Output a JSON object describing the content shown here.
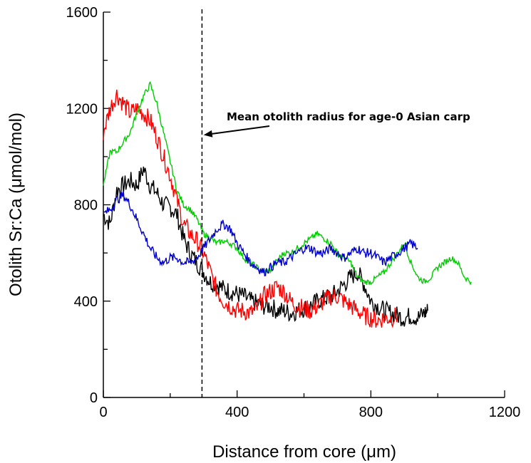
{
  "chart_data": {
    "type": "line",
    "title": "",
    "xlabel": "Distance from core (μm)",
    "ylabel": "Otolith Sr:Ca (μmol/mol)",
    "xlim": [
      0,
      1200
    ],
    "ylim": [
      0,
      1600
    ],
    "x_ticks": [
      0,
      400,
      800,
      1200
    ],
    "x_tick_labels": [
      "0",
      "400",
      "800",
      "1200"
    ],
    "y_ticks": [
      0,
      400,
      800,
      1200,
      1600
    ],
    "y_tick_labels": [
      "0",
      "400",
      "800",
      "1200",
      "1600"
    ],
    "grid": false,
    "legend": "none",
    "reference_line": {
      "x": 295,
      "style": "dashed"
    },
    "annotation": {
      "text": "Mean otolith radius for age-0 Asian carp",
      "arrow_target": {
        "x": 300,
        "y": 1090
      }
    },
    "series": [
      {
        "color": "#000000",
        "x": [
          0,
          20,
          40,
          60,
          80,
          100,
          120,
          140,
          160,
          180,
          200,
          220,
          240,
          260,
          280,
          300,
          320,
          340,
          360,
          380,
          400,
          420,
          440,
          460,
          480,
          500,
          520,
          540,
          560,
          580,
          600,
          620,
          640,
          660,
          680,
          700,
          720,
          740,
          760,
          780,
          800,
          820,
          840,
          860,
          880,
          900,
          920,
          940,
          960,
          970
        ],
        "y": [
          760,
          720,
          860,
          880,
          900,
          880,
          950,
          880,
          850,
          800,
          790,
          760,
          660,
          600,
          560,
          520,
          480,
          470,
          450,
          440,
          430,
          420,
          400,
          390,
          380,
          380,
          360,
          360,
          350,
          360,
          370,
          380,
          400,
          410,
          420,
          440,
          470,
          500,
          520,
          470,
          400,
          380,
          360,
          350,
          340,
          330,
          340,
          330,
          350,
          360
        ]
      },
      {
        "color": "#ff0000",
        "x": [
          0,
          20,
          40,
          60,
          80,
          100,
          120,
          140,
          160,
          180,
          200,
          220,
          240,
          260,
          280,
          300,
          320,
          340,
          360,
          380,
          400,
          420,
          440,
          460,
          480,
          500,
          520,
          540,
          560,
          580,
          600,
          620,
          640,
          660,
          680,
          700,
          720,
          740,
          760,
          780,
          800,
          820,
          840,
          860,
          880
        ],
        "y": [
          1100,
          1200,
          1260,
          1220,
          1180,
          1200,
          1180,
          1150,
          1080,
          1000,
          920,
          820,
          720,
          680,
          650,
          600,
          520,
          440,
          400,
          380,
          360,
          360,
          350,
          370,
          420,
          440,
          460,
          440,
          400,
          380,
          370,
          360,
          380,
          400,
          420,
          420,
          400,
          380,
          360,
          340,
          330,
          320,
          330,
          330,
          340
        ]
      },
      {
        "color": "#00cc00",
        "x": [
          0,
          20,
          40,
          60,
          80,
          100,
          120,
          140,
          160,
          180,
          200,
          220,
          240,
          260,
          280,
          300,
          320,
          340,
          360,
          380,
          400,
          420,
          440,
          460,
          480,
          500,
          520,
          540,
          560,
          580,
          600,
          620,
          640,
          660,
          680,
          700,
          720,
          740,
          760,
          780,
          800,
          820,
          840,
          860,
          880,
          900,
          920,
          940,
          960,
          980,
          1000,
          1020,
          1040,
          1060,
          1080,
          1100
        ],
        "y": [
          880,
          1020,
          1020,
          1060,
          1100,
          1180,
          1250,
          1300,
          1220,
          1100,
          980,
          860,
          800,
          780,
          740,
          680,
          660,
          640,
          650,
          640,
          620,
          580,
          560,
          540,
          520,
          530,
          570,
          600,
          600,
          620,
          640,
          660,
          680,
          660,
          640,
          600,
          580,
          560,
          500,
          480,
          480,
          500,
          520,
          560,
          600,
          640,
          560,
          500,
          480,
          500,
          540,
          560,
          580,
          560,
          500,
          480
        ]
      },
      {
        "color": "#0000cc",
        "x": [
          0,
          20,
          40,
          60,
          80,
          100,
          120,
          140,
          160,
          180,
          200,
          220,
          240,
          260,
          280,
          300,
          320,
          340,
          360,
          380,
          400,
          420,
          440,
          460,
          480,
          500,
          520,
          540,
          560,
          580,
          600,
          620,
          640,
          660,
          680,
          700,
          720,
          740,
          760,
          780,
          800,
          820,
          840,
          860,
          880,
          900,
          920,
          940
        ],
        "y": [
          760,
          780,
          820,
          840,
          800,
          740,
          680,
          620,
          580,
          560,
          580,
          580,
          560,
          560,
          580,
          620,
          660,
          700,
          720,
          700,
          640,
          600,
          560,
          540,
          520,
          540,
          560,
          560,
          580,
          600,
          620,
          620,
          600,
          600,
          620,
          600,
          580,
          600,
          620,
          600,
          600,
          580,
          560,
          580,
          600,
          620,
          640,
          620
        ]
      }
    ]
  }
}
